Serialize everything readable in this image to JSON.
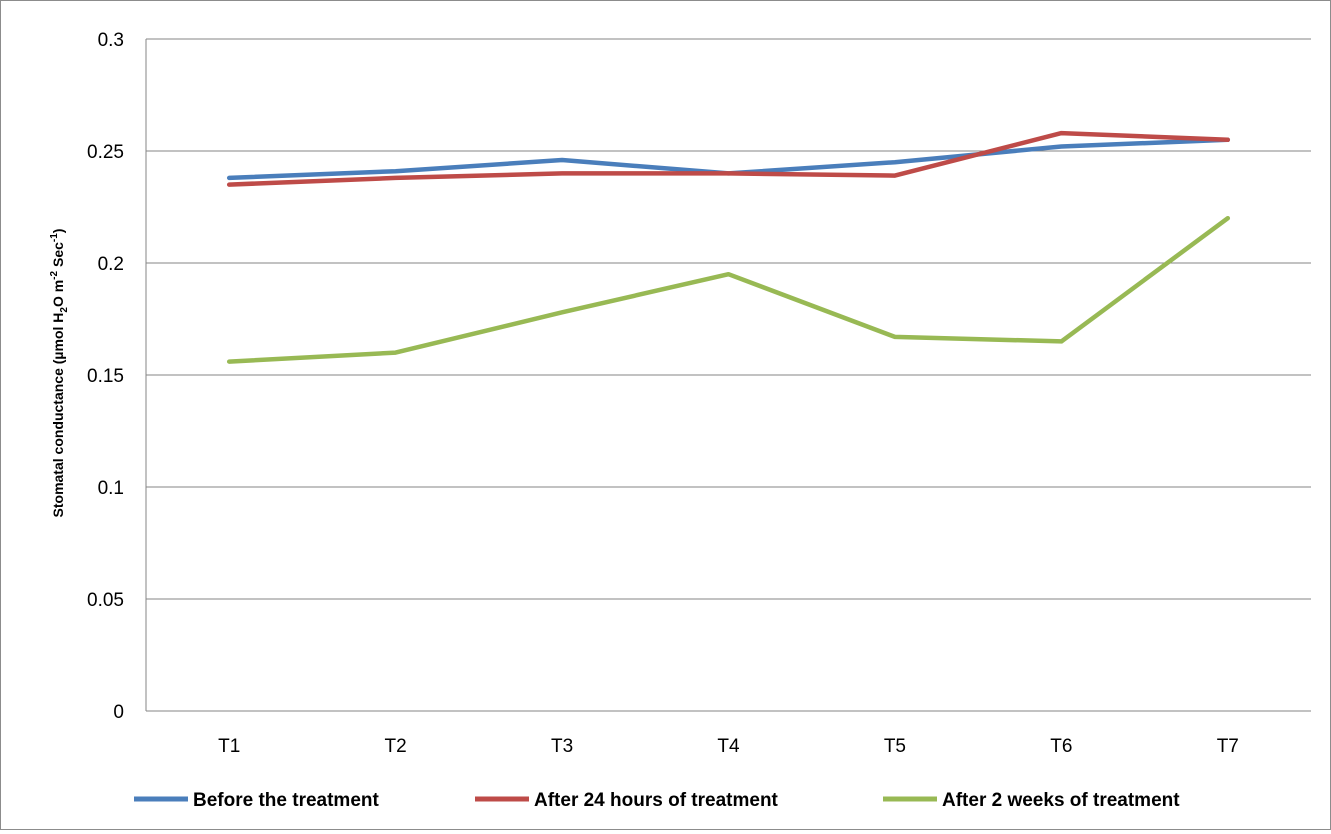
{
  "chart_data": {
    "type": "line",
    "categories": [
      "T1",
      "T2",
      "T3",
      "T4",
      "T5",
      "T6",
      "T7"
    ],
    "ylabel": {
      "main": "Stomatal conductance (µmol H",
      "sub1": "2",
      "mid": "O m",
      "sup1": "-2",
      "post": " Sec",
      "sup2": "-1",
      "close": ")"
    },
    "ylim": [
      0,
      0.3
    ],
    "yticks": [
      "0",
      "0.05",
      "0.1",
      "0.15",
      "0.2",
      "0.25",
      "0.3"
    ],
    "ytick_values": [
      0,
      0.05,
      0.1,
      0.15,
      0.2,
      0.25,
      0.3
    ],
    "grid": true,
    "legend_position": "bottom",
    "series": [
      {
        "name": "Before the treatment",
        "color": "#4a7ebb",
        "values": [
          0.238,
          0.241,
          0.246,
          0.24,
          0.245,
          0.252,
          0.255
        ]
      },
      {
        "name": "After 24 hours of treatment",
        "color": "#be4b48",
        "values": [
          0.235,
          0.238,
          0.24,
          0.24,
          0.239,
          0.258,
          0.255
        ]
      },
      {
        "name": "After 2 weeks of treatment",
        "color": "#98b954",
        "values": [
          0.156,
          0.16,
          0.178,
          0.195,
          0.167,
          0.165,
          0.22
        ]
      }
    ]
  }
}
